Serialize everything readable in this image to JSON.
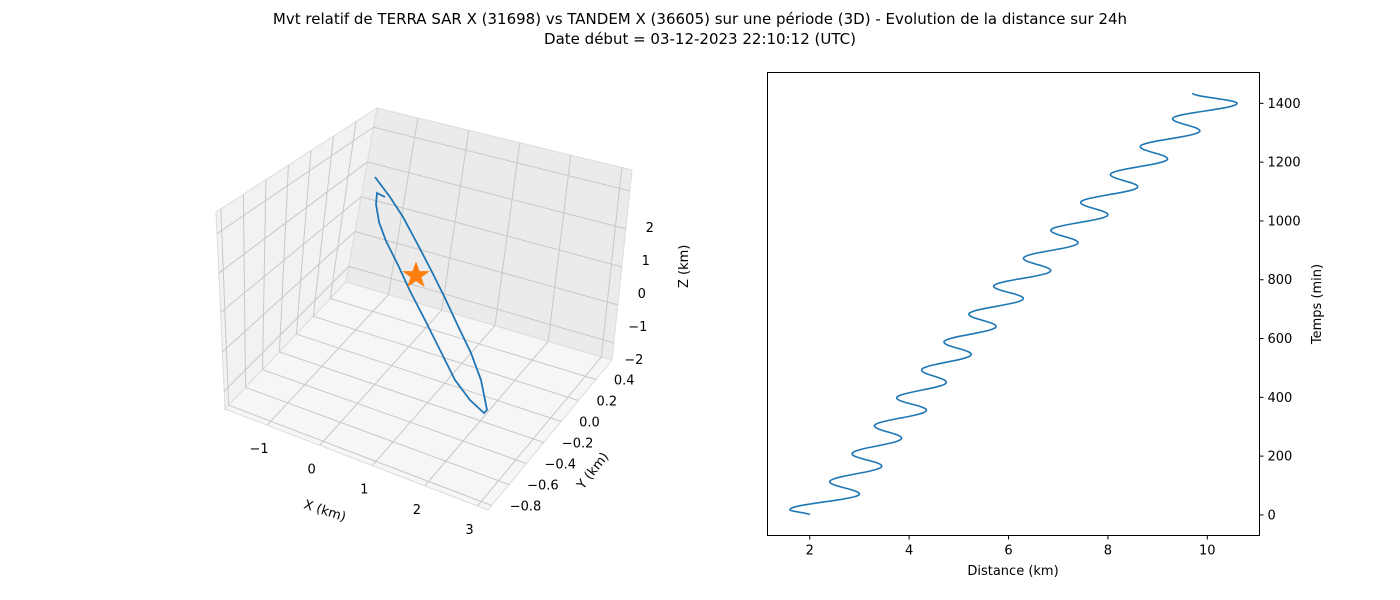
{
  "figure": {
    "title_line1": "Mvt relatif de TERRA SAR X (31698) vs TANDEM X (36605) sur une période (3D) - Evolution de la distance sur 24h",
    "title_line2": "Date début = 03-12-2023 22:10:12 (UTC)"
  },
  "chart_data": [
    {
      "type": "line",
      "projection": "3d",
      "title": "",
      "xlabel": "X (km)",
      "ylabel": "Y (km)",
      "zlabel": "Z (km)",
      "xticks": [
        "−1",
        "0",
        "1",
        "2",
        "3"
      ],
      "yticks": [
        "−0.8",
        "−0.6",
        "−0.4",
        "−0.2",
        "0.0",
        "0.2",
        "0.4"
      ],
      "zticks": [
        "2",
        "1",
        "0",
        "−1",
        "−2"
      ],
      "grid": true,
      "series": [
        {
          "color": "#1f77b4",
          "x": [
            -0.2,
            1.5,
            2.3,
            2.1,
            0.4,
            -0.05,
            -0.2
          ],
          "y": [
            0.3,
            -0.2,
            -0.7,
            -0.75,
            -0.1,
            0.28,
            0.3
          ],
          "z": [
            2.3,
            0.6,
            -1.9,
            -2.0,
            0.0,
            2.0,
            2.3
          ]
        }
      ],
      "marker": {
        "symbol": "star",
        "color": "#ff7f0e",
        "x": 0.5,
        "y": 0.0,
        "z": 0.0
      }
    },
    {
      "type": "line",
      "title": "",
      "xlabel": "Distance (km)",
      "ylabel": "Temps (min)",
      "xlim": [
        1.15,
        11.05
      ],
      "ylim": [
        -70,
        1505
      ],
      "xticks": [
        2,
        4,
        6,
        8,
        10
      ],
      "yticks": [
        0,
        200,
        400,
        600,
        800,
        1000,
        1200,
        1400
      ],
      "yaxis_side": "right",
      "grid": false,
      "series": [
        {
          "color": "#1f77b4",
          "period_min": 95,
          "x": [
            2.0,
            1.6,
            3.0,
            2.4,
            3.45,
            2.85,
            3.85,
            3.3,
            4.35,
            3.75,
            4.75,
            4.25,
            5.25,
            4.7,
            5.75,
            5.2,
            6.3,
            5.7,
            6.85,
            6.3,
            7.4,
            6.85,
            8.0,
            7.45,
            8.6,
            8.05,
            9.2,
            8.65,
            9.85,
            9.3,
            10.6,
            9.7
          ],
          "y": [
            0,
            18,
            71,
            113,
            166,
            208,
            261,
            303,
            356,
            398,
            451,
            493,
            546,
            588,
            641,
            683,
            736,
            778,
            831,
            873,
            926,
            968,
            1021,
            1063,
            1116,
            1158,
            1211,
            1253,
            1306,
            1348,
            1400,
            1435
          ]
        }
      ]
    }
  ],
  "colors": {
    "line": "#1f77b4",
    "star": "#ff7f0e",
    "pane_back": "#ebebeb",
    "pane_side": "#f2f2f2",
    "pane_floor": "#f5f5f5"
  }
}
